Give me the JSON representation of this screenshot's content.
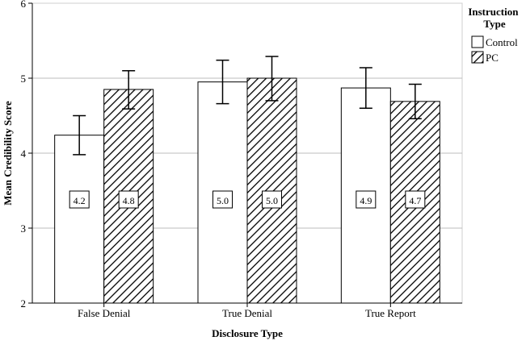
{
  "chart_data": {
    "type": "bar",
    "title": "",
    "xlabel": "Disclosure Type",
    "ylabel": "Mean Credibility Score",
    "ylim": [
      2,
      6
    ],
    "yticks": [
      2,
      3,
      4,
      5,
      6
    ],
    "grid": "horizontal",
    "categories": [
      "False Denial",
      "True Denial",
      "True Report"
    ],
    "series": [
      {
        "name": "Control",
        "pattern": "plain",
        "values": [
          4.24,
          4.95,
          4.87
        ],
        "labels": [
          "4.2",
          "5.0",
          "4.9"
        ],
        "error_low": [
          3.98,
          4.66,
          4.6
        ],
        "error_high": [
          4.5,
          5.24,
          5.14
        ]
      },
      {
        "name": "PC",
        "pattern": "hatched",
        "values": [
          4.85,
          5.0,
          4.69
        ],
        "labels": [
          "4.8",
          "5.0",
          "4.7"
        ],
        "error_low": [
          4.59,
          4.7,
          4.46
        ],
        "error_high": [
          5.1,
          5.29,
          4.92
        ]
      }
    ],
    "legend": {
      "title": "Instruction Type",
      "position": "top-right"
    },
    "colors": {
      "bar_fill": "#ffffff",
      "stroke": "#000000",
      "grid": "#bdbdbd"
    }
  }
}
